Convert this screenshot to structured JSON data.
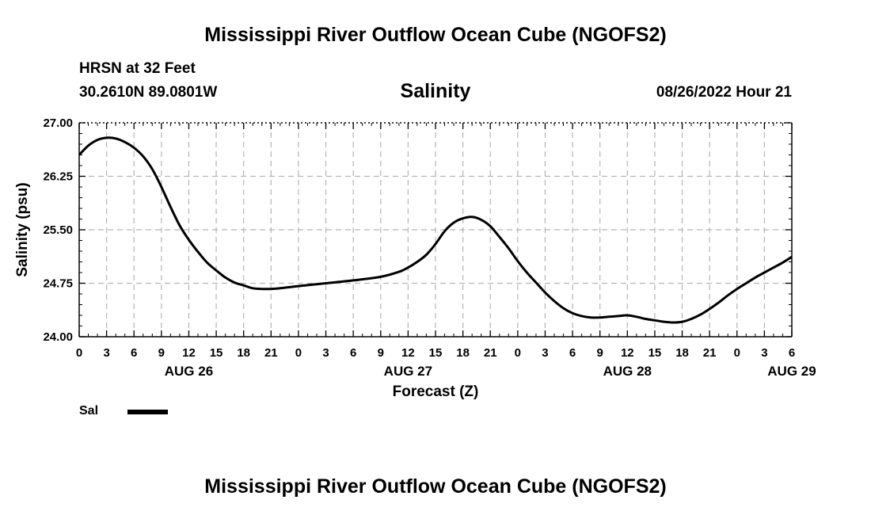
{
  "header": {
    "title": "Mississippi River Outflow Ocean Cube (NGOFS2)",
    "station": "HRSN at 32 Feet",
    "coords": "30.2610N  89.0801W",
    "plot_title": "Salinity",
    "date": "08/26/2022 Hour 21",
    "footer_title": "Mississippi River Outflow Ocean Cube (NGOFS2)"
  },
  "legend": {
    "label": "Sal",
    "color": "#000000"
  },
  "chart_data": {
    "type": "line",
    "title": "Salinity",
    "xlabel": "Forecast (Z)",
    "ylabel": "Salinity (psu)",
    "ylim": [
      24.0,
      27.0
    ],
    "yticks": [
      "24.00",
      "24.75",
      "25.50",
      "26.25",
      "27.00"
    ],
    "xlim": [
      0,
      78
    ],
    "x_tick_labels": [
      "0",
      "3",
      "6",
      "9",
      "12",
      "15",
      "18",
      "21",
      "0",
      "3",
      "6",
      "9",
      "12",
      "15",
      "18",
      "21",
      "0",
      "3",
      "6",
      "9",
      "12",
      "15",
      "18",
      "21",
      "0",
      "3",
      "6"
    ],
    "day_labels": [
      {
        "label": "AUG 26",
        "hour": 12
      },
      {
        "label": "AUG 27",
        "hour": 36
      },
      {
        "label": "AUG 28",
        "hour": 60
      },
      {
        "label": "AUG 29",
        "hour": 78
      }
    ],
    "grid": true,
    "series": [
      {
        "name": "Sal",
        "color": "#000000",
        "x": [
          0,
          1,
          2,
          3,
          4,
          5,
          6,
          7,
          8,
          9,
          10,
          11,
          12,
          13,
          14,
          15,
          16,
          17,
          18,
          19,
          20,
          21,
          22,
          24,
          27,
          30,
          33,
          35,
          36,
          37,
          38,
          39,
          40,
          41,
          42,
          43,
          44,
          45,
          46,
          47,
          48,
          49,
          50,
          51,
          52,
          53,
          54,
          55,
          56,
          57,
          58,
          59,
          60,
          61,
          62,
          63,
          64,
          65,
          66,
          67,
          68,
          69,
          70,
          71,
          72,
          73,
          74,
          75,
          76,
          77,
          78
        ],
        "values": [
          26.55,
          26.68,
          26.76,
          26.79,
          26.78,
          26.73,
          26.65,
          26.53,
          26.35,
          26.1,
          25.82,
          25.56,
          25.36,
          25.19,
          25.04,
          24.93,
          24.83,
          24.76,
          24.72,
          24.68,
          24.67,
          24.67,
          24.68,
          24.71,
          24.75,
          24.79,
          24.84,
          24.91,
          24.97,
          25.05,
          25.15,
          25.3,
          25.48,
          25.6,
          25.66,
          25.68,
          25.64,
          25.55,
          25.4,
          25.24,
          25.06,
          24.9,
          24.76,
          24.62,
          24.5,
          24.4,
          24.33,
          24.29,
          24.27,
          24.27,
          24.28,
          24.29,
          24.3,
          24.28,
          24.25,
          24.23,
          24.21,
          24.2,
          24.21,
          24.25,
          24.31,
          24.39,
          24.48,
          24.58,
          24.67,
          24.75,
          24.83,
          24.9,
          24.97,
          25.04,
          25.12
        ]
      }
    ]
  }
}
